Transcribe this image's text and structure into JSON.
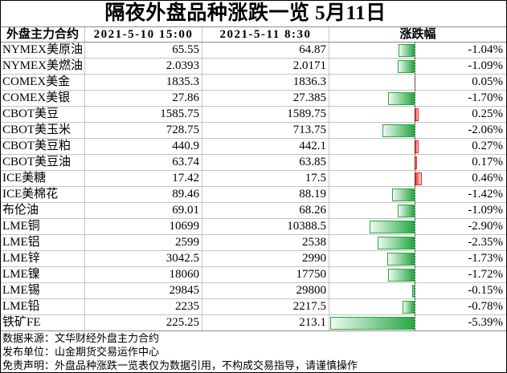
{
  "chart_data": {
    "type": "table",
    "title": "隔夜外盘品种涨跌一览 5月11日",
    "columns": [
      "外盘主力合约",
      "2021-5-10 15:00",
      "2021-5-11 8:30",
      "涨跌幅"
    ],
    "colors": {
      "rise": "#ee2c2c",
      "decline": "#27a844"
    },
    "rows": [
      {
        "contract": "NYMEX美原油",
        "prev": "65.55",
        "curr": "64.87",
        "change_pct": -1.04,
        "change_label": "-1.04%"
      },
      {
        "contract": "NYMEX美燃油",
        "prev": "2.0393",
        "curr": "2.0171",
        "change_pct": -1.09,
        "change_label": "-1.09%"
      },
      {
        "contract": "COMEX美金",
        "prev": "1835.3",
        "curr": "1836.3",
        "change_pct": 0.05,
        "change_label": "0.05%"
      },
      {
        "contract": "COMEX美银",
        "prev": "27.86",
        "curr": "27.385",
        "change_pct": -1.7,
        "change_label": "-1.70%"
      },
      {
        "contract": "CBOT美豆",
        "prev": "1585.75",
        "curr": "1589.75",
        "change_pct": 0.25,
        "change_label": "0.25%"
      },
      {
        "contract": "CBOT美玉米",
        "prev": "728.75",
        "curr": "713.75",
        "change_pct": -2.06,
        "change_label": "-2.06%"
      },
      {
        "contract": "CBOT美豆粕",
        "prev": "440.9",
        "curr": "442.1",
        "change_pct": 0.27,
        "change_label": "0.27%"
      },
      {
        "contract": "CBOT美豆油",
        "prev": "63.74",
        "curr": "63.85",
        "change_pct": 0.17,
        "change_label": "0.17%"
      },
      {
        "contract": "ICE美糖",
        "prev": "17.42",
        "curr": "17.5",
        "change_pct": 0.46,
        "change_label": "0.46%"
      },
      {
        "contract": "ICE美棉花",
        "prev": "89.46",
        "curr": "88.19",
        "change_pct": -1.42,
        "change_label": "-1.42%"
      },
      {
        "contract": "布伦油",
        "prev": "69.01",
        "curr": "68.26",
        "change_pct": -1.09,
        "change_label": "-1.09%"
      },
      {
        "contract": "LME铜",
        "prev": "10699",
        "curr": "10388.5",
        "change_pct": -2.9,
        "change_label": "-2.90%"
      },
      {
        "contract": "LME铝",
        "prev": "2599",
        "curr": "2538",
        "change_pct": -2.35,
        "change_label": "-2.35%"
      },
      {
        "contract": "LME锌",
        "prev": "3042.5",
        "curr": "2990",
        "change_pct": -1.73,
        "change_label": "-1.73%"
      },
      {
        "contract": "LME镍",
        "prev": "18060",
        "curr": "17750",
        "change_pct": -1.72,
        "change_label": "-1.72%"
      },
      {
        "contract": "LME锡",
        "prev": "29845",
        "curr": "29800",
        "change_pct": -0.15,
        "change_label": "-0.15%"
      },
      {
        "contract": "LME铅",
        "prev": "2235",
        "curr": "2217.5",
        "change_pct": -0.78,
        "change_label": "-0.78%"
      },
      {
        "contract": "铁矿FE",
        "prev": "225.25",
        "curr": "213.1",
        "change_pct": -5.39,
        "change_label": "-5.39%"
      }
    ]
  },
  "footer": {
    "source": "数据来源：文华财经外盘主力合约",
    "publisher": "发布单位：山金期货交易运作中心",
    "disclaimer": "免责声明：外盘品种涨跌一览表仅为数据引用，不构成交易指导，请谨慎操作"
  }
}
